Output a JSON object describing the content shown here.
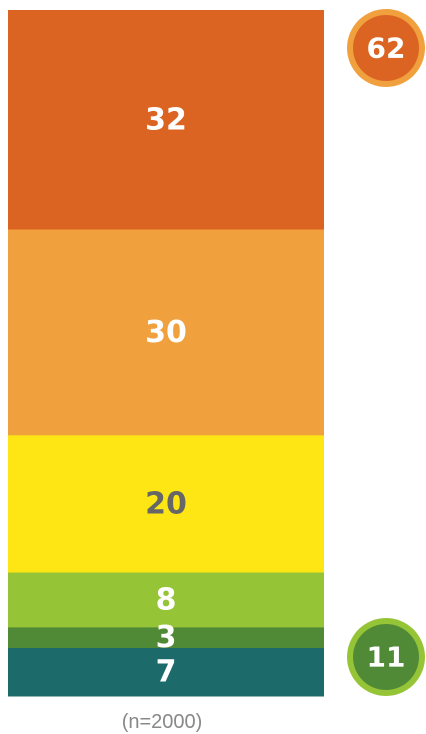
{
  "chart_data": {
    "type": "bar",
    "stacked": true,
    "orientation": "vertical",
    "segments": [
      {
        "label": "32",
        "value": 32,
        "color": "#dc6423",
        "text_color": "#ffffff"
      },
      {
        "label": "30",
        "value": 30,
        "color": "#f0a03c",
        "text_color": "#ffffff"
      },
      {
        "label": "20",
        "value": 20,
        "color": "#fde614",
        "text_color": "#666666"
      },
      {
        "label": "8",
        "value": 8,
        "color": "#96c437",
        "text_color": "#ffffff"
      },
      {
        "label": "3",
        "value": 3,
        "color": "#518a36",
        "text_color": "#ffffff"
      },
      {
        "label": "7",
        "value": 7,
        "color": "#1c6a6a",
        "text_color": "#ffffff"
      }
    ],
    "totals": [
      {
        "label": "62",
        "value": 62,
        "fill": "#dc6423",
        "ring": "#f0a03c",
        "placement": "top-right"
      },
      {
        "label": "11",
        "value": 11,
        "fill": "#518a36",
        "ring": "#96c437",
        "placement": "bottom-right"
      }
    ],
    "note": "(n=2000)",
    "grid": false,
    "legend": "none"
  }
}
